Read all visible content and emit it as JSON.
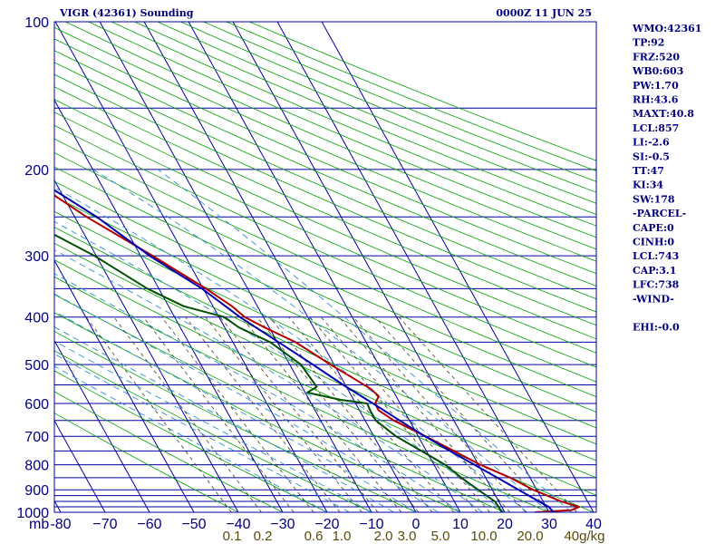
{
  "header": {
    "title": "VIGR (42361) Sounding",
    "datetime": "0000Z 11 JUN 25"
  },
  "indices": [
    "WMO:42361",
    "TP:92",
    "FRZ:520",
    "WB0:603",
    "PW:1.70",
    "RH:43.6",
    "MAXT:40.8",
    "LCL:857",
    "LI:-2.6",
    "SI:-0.5",
    "TT:47",
    "KI:34",
    "SW:178",
    "-PARCEL-",
    "CAPE:0",
    "CINH:0",
    "LCL:743",
    "CAP:3.1",
    "LFC:738",
    "-WIND-",
    "",
    "EHI:-0.0"
  ],
  "colors": {
    "grid": "#0000a0",
    "dry_adiabat": "#00a000",
    "moist_adiabat": "#3090d0",
    "mixing_ratio": "#404020",
    "temperature": "#b00000",
    "dewpoint": "#005000",
    "parcel": "#0000b0",
    "text": "#00007f",
    "mixing_label": "#5a4a0a"
  },
  "chart_data": {
    "type": "line",
    "subtype": "skew-T log-P",
    "y_scale": "log",
    "ylim": [
      1000,
      100
    ],
    "xlim": [
      -80,
      40
    ],
    "y_ticks": [
      100,
      200,
      300,
      400,
      500,
      600,
      700,
      800,
      900,
      1000
    ],
    "y_tick_labels": [
      "100",
      "200",
      "300",
      "400",
      "500",
      "600",
      "700",
      "800",
      "900",
      "1000"
    ],
    "x_ticks": [
      -80,
      -70,
      -60,
      -50,
      -40,
      -30,
      -20,
      -10,
      0,
      10,
      20,
      30,
      40
    ],
    "x_tick_labels": [
      "-80",
      "−70",
      "−60",
      "−50",
      "−40",
      "−30",
      "−20",
      "−10",
      "0",
      "10",
      "20",
      "30",
      "40"
    ],
    "x_axis_prefix": "mb",
    "mixing_ratio_labels": [
      "0.1",
      "0.2",
      "0.6",
      "1.0",
      "2.0",
      "3.0",
      "5.0",
      "10.0",
      "20.0",
      "40g/kg"
    ],
    "grid_pressures": [
      100,
      150,
      200,
      250,
      300,
      350,
      400,
      450,
      500,
      550,
      600,
      650,
      700,
      750,
      800,
      850,
      900,
      925,
      950,
      975,
      1000
    ],
    "series": [
      {
        "key": "temperature",
        "points": [
          [
            1000,
            26.8
          ],
          [
            990,
            35.3
          ],
          [
            975,
            37.4
          ],
          [
            950,
            34.0
          ],
          [
            900,
            29.2
          ],
          [
            850,
            25.5
          ],
          [
            800,
            20.4
          ],
          [
            750,
            16.2
          ],
          [
            700,
            11.6
          ],
          [
            650,
            6.5
          ],
          [
            620,
            4.3
          ],
          [
            600,
            4.4
          ],
          [
            580,
            6.1
          ],
          [
            560,
            5.2
          ],
          [
            500,
            -0.8
          ],
          [
            450,
            -5.9
          ],
          [
            420,
            -11.0
          ],
          [
            400,
            -14.2
          ],
          [
            380,
            -15.7
          ],
          [
            350,
            -19.4
          ],
          [
            300,
            -27.3
          ],
          [
            250,
            -37.3
          ],
          [
            200,
            -47.4
          ],
          [
            150,
            -61.6
          ],
          [
            100,
            -79.0
          ]
        ]
      },
      {
        "key": "dewpoint",
        "points": [
          [
            1000,
            19.3
          ],
          [
            975,
            19.3
          ],
          [
            950,
            19.1
          ],
          [
            900,
            16.8
          ],
          [
            850,
            14.5
          ],
          [
            800,
            12.5
          ],
          [
            750,
            8.9
          ],
          [
            700,
            5.0
          ],
          [
            650,
            2.4
          ],
          [
            620,
            2.4
          ],
          [
            600,
            2.6
          ],
          [
            590,
            -2.9
          ],
          [
            575,
            -7.9
          ],
          [
            570,
            -9.5
          ],
          [
            555,
            -6.7
          ],
          [
            500,
            -7.5
          ],
          [
            450,
            -11.6
          ],
          [
            420,
            -16.8
          ],
          [
            400,
            -18.8
          ],
          [
            380,
            -26.6
          ],
          [
            350,
            -32.6
          ],
          [
            300,
            -40.4
          ],
          [
            250,
            -52.2
          ],
          [
            230,
            -57.4
          ],
          [
            200,
            -65.3
          ],
          [
            180,
            -69.1
          ]
        ]
      },
      {
        "key": "parcel",
        "points": [
          [
            1000,
            31.0
          ],
          [
            975,
            30.6
          ],
          [
            950,
            29.0
          ],
          [
            900,
            25.9
          ],
          [
            850,
            22.6
          ],
          [
            800,
            19.1
          ],
          [
            750,
            15.3
          ],
          [
            700,
            11.5
          ],
          [
            650,
            7.8
          ],
          [
            600,
            3.9
          ],
          [
            550,
            -0.5
          ],
          [
            500,
            -4.8
          ],
          [
            450,
            -9.7
          ],
          [
            400,
            -15.3
          ],
          [
            350,
            -20.3
          ],
          [
            300,
            -28.0
          ],
          [
            250,
            -35.0
          ],
          [
            200,
            -46.0
          ],
          [
            150,
            -60.0
          ],
          [
            100,
            -79.0
          ]
        ]
      }
    ]
  }
}
